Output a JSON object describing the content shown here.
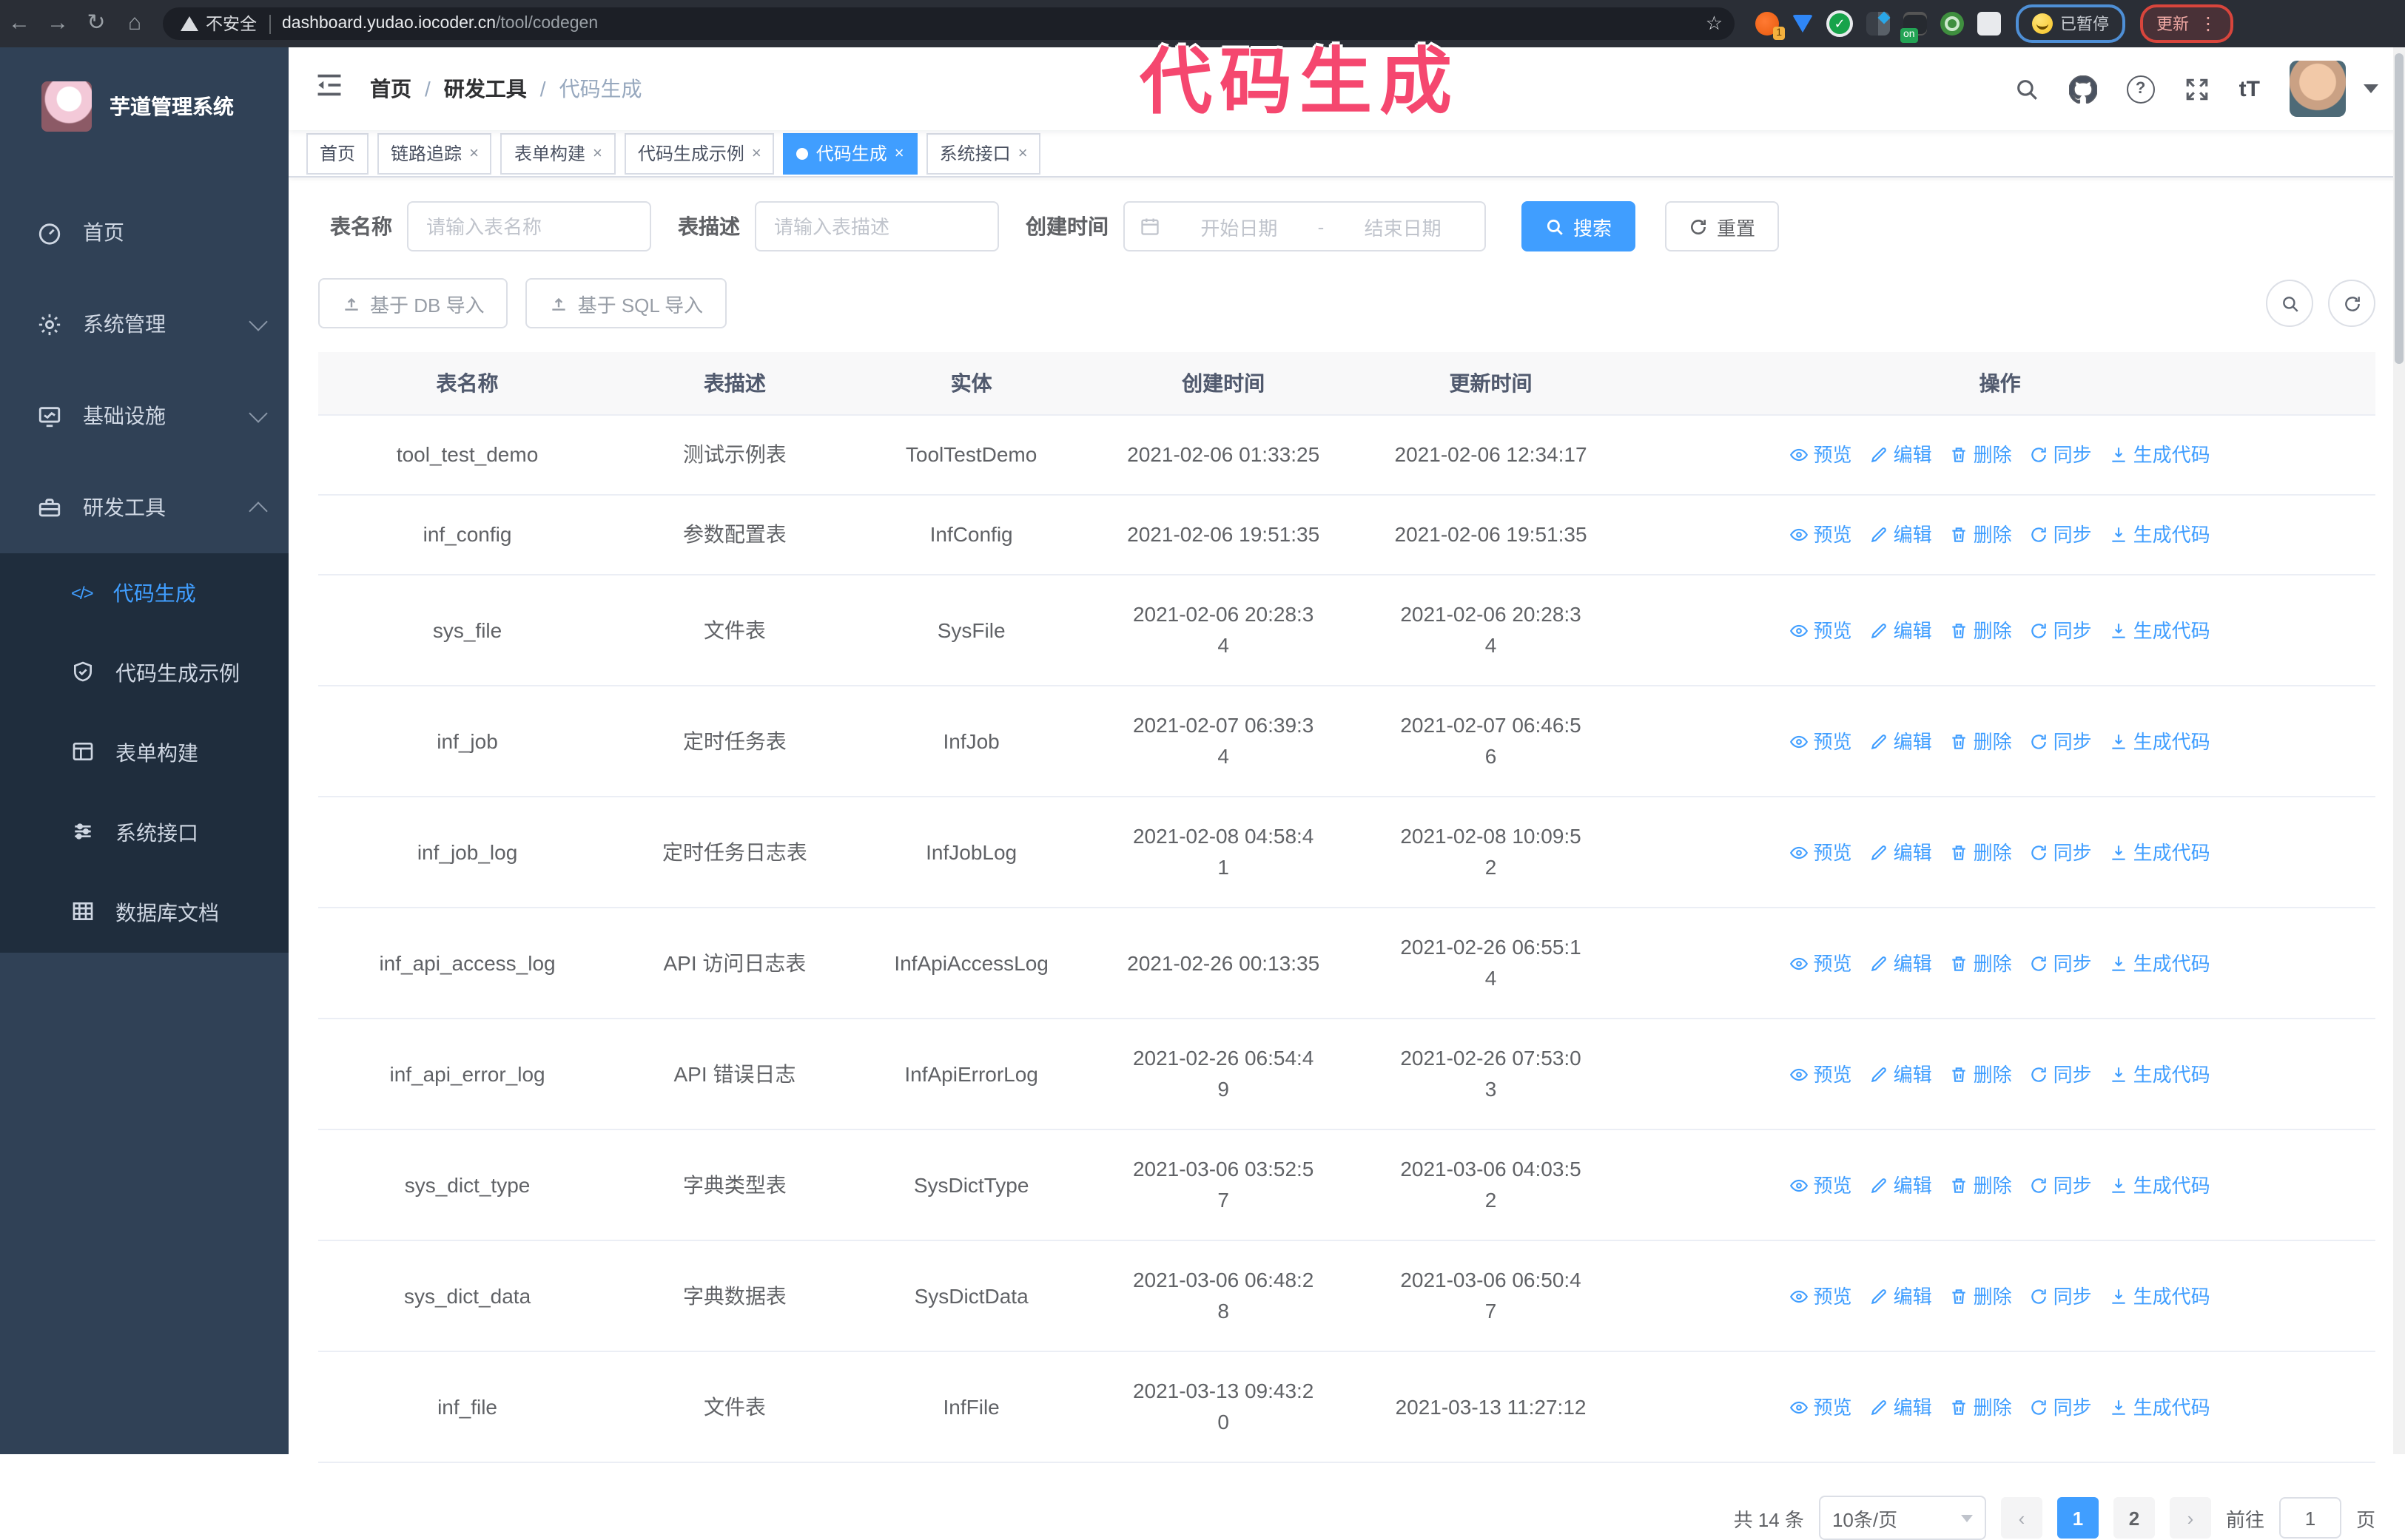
{
  "colors": {
    "accent": "#409eff",
    "annotation_pink": "#f5476f",
    "sidebar_bg": "#304156",
    "submenu_bg": "#1f2d3d",
    "tab_active_bg": "#409eff"
  },
  "icons": {
    "back": "←",
    "forward": "→",
    "reload": "↻",
    "home": "⌂",
    "star": "☆",
    "kebab": "⋮",
    "question": "?",
    "font_size": "tT",
    "code": "</>",
    "close": "×",
    "range_sep": "-",
    "prev": "‹",
    "next": "›"
  },
  "browser": {
    "security_label": "不安全",
    "url_domain": "dashboard.yudao.iocoder.cn",
    "url_path": "/tool/codegen",
    "ext_badge_count": "1",
    "ext_badge_on": "on",
    "paused_chip": "已暂停",
    "update_chip": "更新"
  },
  "annotation": {
    "text": "代码生成"
  },
  "sidebar": {
    "app_title": "芋道管理系统",
    "items": [
      {
        "label": "首页"
      },
      {
        "label": "系统管理"
      },
      {
        "label": "基础设施"
      },
      {
        "label": "研发工具"
      }
    ],
    "sub_items": [
      {
        "label": "代码生成"
      },
      {
        "label": "代码生成示例"
      },
      {
        "label": "表单构建"
      },
      {
        "label": "系统接口"
      },
      {
        "label": "数据库文档"
      }
    ]
  },
  "header": {
    "breadcrumb": [
      "首页",
      "研发工具",
      "代码生成"
    ],
    "separator": "/"
  },
  "tabs": [
    {
      "label": "首页",
      "closable": false,
      "active": false
    },
    {
      "label": "链路追踪",
      "closable": true,
      "active": false
    },
    {
      "label": "表单构建",
      "closable": true,
      "active": false
    },
    {
      "label": "代码生成示例",
      "closable": true,
      "active": false
    },
    {
      "label": "代码生成",
      "closable": true,
      "active": true
    },
    {
      "label": "系统接口",
      "closable": true,
      "active": false
    }
  ],
  "filters": {
    "name_label": "表名称",
    "name_placeholder": "请输入表名称",
    "desc_label": "表描述",
    "desc_placeholder": "请输入表描述",
    "time_label": "创建时间",
    "start_placeholder": "开始日期",
    "end_placeholder": "结束日期",
    "search_label": "搜索",
    "reset_label": "重置"
  },
  "toolbar": {
    "db_import_label": "基于 DB 导入",
    "sql_import_label": "基于 SQL 导入"
  },
  "table": {
    "columns": [
      "表名称",
      "表描述",
      "实体",
      "创建时间",
      "更新时间",
      "操作"
    ],
    "action_labels": [
      "预览",
      "编辑",
      "删除",
      "同步",
      "生成代码"
    ],
    "rows": [
      {
        "name": "tool_test_demo",
        "desc": "测试示例表",
        "entity": "ToolTestDemo",
        "created": "2021-02-06 01:33:25",
        "updated": "2021-02-06 12:34:17"
      },
      {
        "name": "inf_config",
        "desc": "参数配置表",
        "entity": "InfConfig",
        "created": "2021-02-06 19:51:35",
        "updated": "2021-02-06 19:51:35"
      },
      {
        "name": "sys_file",
        "desc": "文件表",
        "entity": "SysFile",
        "created": "2021-02-06 20:28:3\n4",
        "updated": "2021-02-06 20:28:3\n4"
      },
      {
        "name": "inf_job",
        "desc": "定时任务表",
        "entity": "InfJob",
        "created": "2021-02-07 06:39:3\n4",
        "updated": "2021-02-07 06:46:5\n6"
      },
      {
        "name": "inf_job_log",
        "desc": "定时任务日志表",
        "entity": "InfJobLog",
        "created": "2021-02-08 04:58:4\n1",
        "updated": "2021-02-08 10:09:5\n2"
      },
      {
        "name": "inf_api_access_log",
        "desc": "API 访问日志表",
        "entity": "InfApiAccessLog",
        "created": "2021-02-26 00:13:35",
        "updated": "2021-02-26 06:55:1\n4"
      },
      {
        "name": "inf_api_error_log",
        "desc": "API 错误日志",
        "entity": "InfApiErrorLog",
        "created": "2021-02-26 06:54:4\n9",
        "updated": "2021-02-26 07:53:0\n3"
      },
      {
        "name": "sys_dict_type",
        "desc": "字典类型表",
        "entity": "SysDictType",
        "created": "2021-03-06 03:52:5\n7",
        "updated": "2021-03-06 04:03:5\n2"
      },
      {
        "name": "sys_dict_data",
        "desc": "字典数据表",
        "entity": "SysDictData",
        "created": "2021-03-06 06:48:2\n8",
        "updated": "2021-03-06 06:50:4\n7"
      },
      {
        "name": "inf_file",
        "desc": "文件表",
        "entity": "InfFile",
        "created": "2021-03-13 09:43:2\n0",
        "updated": "2021-03-13 11:27:12"
      }
    ]
  },
  "pagination": {
    "total": "共 14 条",
    "page_size": "10条/页",
    "page1": "1",
    "page2": "2",
    "current": "1",
    "goto_label": "前往",
    "goto_value": "1",
    "goto_suffix": "页"
  }
}
